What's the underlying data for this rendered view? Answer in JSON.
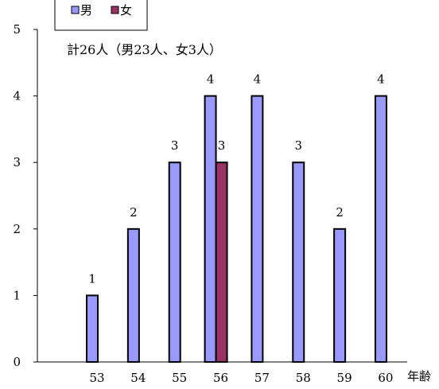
{
  "chart_data": {
    "type": "bar",
    "categories": [
      "53",
      "54",
      "55",
      "56",
      "57",
      "58",
      "59",
      "60"
    ],
    "series": [
      {
        "name": "男",
        "color": "#9999ff",
        "values": [
          1,
          2,
          3,
          4,
          4,
          3,
          2,
          4
        ]
      },
      {
        "name": "女",
        "color": "#993366",
        "values": [
          null,
          null,
          null,
          3,
          null,
          null,
          null,
          null
        ]
      }
    ],
    "ylim": [
      0,
      5
    ],
    "yticks": [
      "0",
      "1",
      "2",
      "3",
      "4",
      "5"
    ],
    "xlabel": "年齢",
    "ylabel": "",
    "annotation": "計26人（男23人、女3人）",
    "legend_position": "top-left",
    "grid": false
  }
}
